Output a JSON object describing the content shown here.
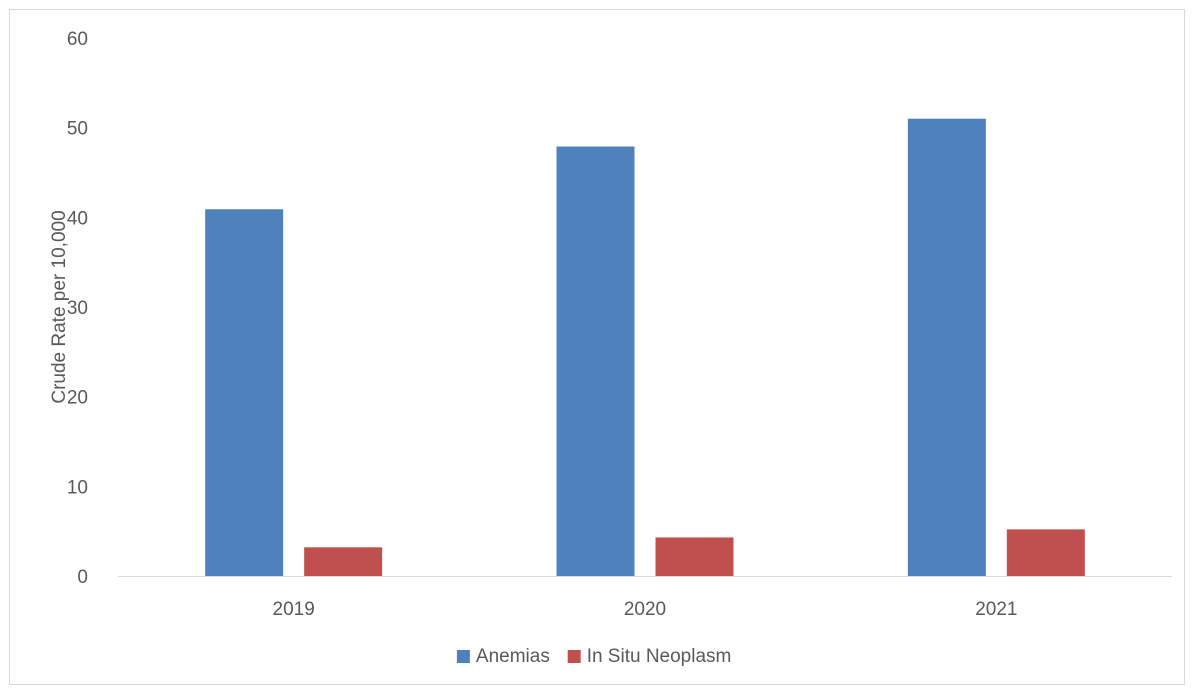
{
  "chart_data": {
    "type": "bar",
    "title": "",
    "xlabel": "",
    "ylabel": "Crude Rate per 10,000",
    "categories": [
      "2019",
      "2020",
      "2021"
    ],
    "series": [
      {
        "name": "Anemias",
        "values": [
          40.9,
          47.9,
          51.0
        ],
        "color": "#4f81bd"
      },
      {
        "name": "In Situ Neoplasm",
        "values": [
          3.2,
          4.3,
          5.2
        ],
        "color": "#c0504d"
      }
    ],
    "ylim": [
      0,
      60
    ],
    "yticks": [
      "0",
      "10",
      "20",
      "30",
      "40",
      "50",
      "60"
    ],
    "grid": false,
    "legend_position": "bottom"
  }
}
